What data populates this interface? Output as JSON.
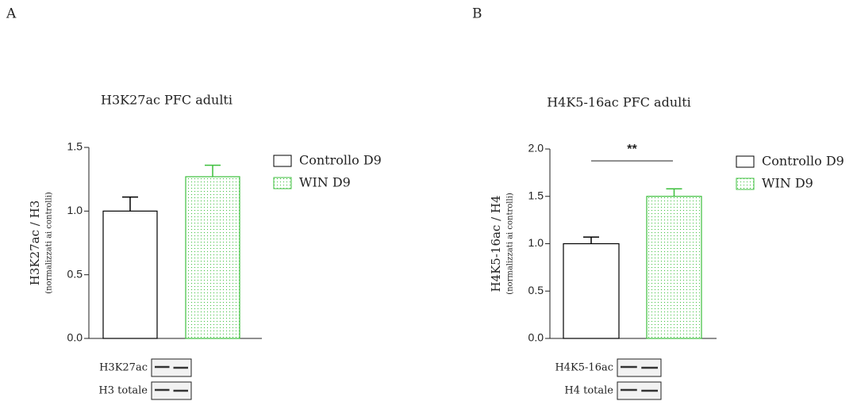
{
  "chart_data": [
    {
      "type": "bar",
      "panel": "A",
      "title": "H3K27ac PFC adulti",
      "y_label": "H3K27ac / H3",
      "y_sublabel": "(normalizzati ai controlli)",
      "ylim": [
        0,
        1.5
      ],
      "yticks": [
        {
          "value": 0,
          "label": "0.0"
        },
        0.5,
        {
          "value": 1,
          "label": "1.0"
        },
        1.5
      ],
      "series": [
        {
          "name": "Controllo D9",
          "color": "#000000",
          "values": [
            1.0
          ],
          "errors": [
            0.11
          ]
        },
        {
          "name": "WIN D9",
          "color": "#3cbf3c",
          "values": [
            1.27
          ],
          "errors": [
            0.09
          ]
        }
      ],
      "blot_labels": [
        "H3K27ac",
        "H3 totale"
      ]
    },
    {
      "type": "bar",
      "panel": "B",
      "title": "H4K5-16ac PFC adulti",
      "y_label": "H4K5-16ac / H4",
      "y_sublabel": "(normalizzati ai controlli)",
      "ylim": [
        0,
        2.0
      ],
      "yticks": [
        {
          "value": 0,
          "label": "0.0"
        },
        0.5,
        {
          "value": 1,
          "label": "1.0"
        },
        1.5,
        {
          "value": 2,
          "label": "2.0"
        }
      ],
      "series": [
        {
          "name": "Controllo D9",
          "color": "#000000",
          "values": [
            1.0
          ],
          "errors": [
            0.07
          ]
        },
        {
          "name": "WIN D9",
          "color": "#3cbf3c",
          "values": [
            1.5
          ],
          "errors": [
            0.08
          ]
        }
      ],
      "annotation": "**",
      "blot_labels": [
        "H4K5-16ac",
        "H4 totale"
      ]
    }
  ]
}
